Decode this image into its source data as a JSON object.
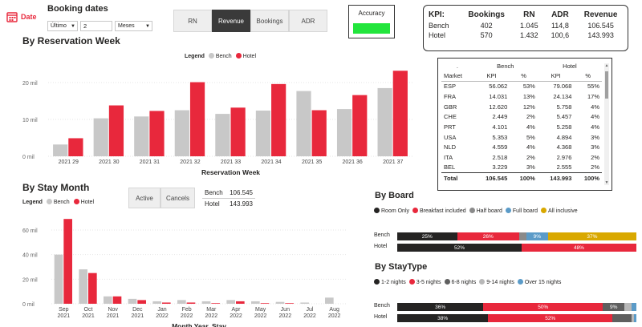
{
  "header": {
    "date_label": "Date",
    "booking_dates_label": "Booking dates",
    "period_mode": "Último",
    "period_count": "2",
    "period_unit": "Meses"
  },
  "metric_tabs": [
    {
      "label": "RN",
      "active": false
    },
    {
      "label": "Revenue",
      "active": true
    },
    {
      "label": "Bookings",
      "active": false
    },
    {
      "label": "ADR",
      "active": false
    }
  ],
  "accuracy": {
    "label": "Accuracy",
    "color": "#22e53c"
  },
  "kpi_summary": {
    "headers": [
      "KPI:",
      "Bookings",
      "RN",
      "ADR",
      "Revenue"
    ],
    "rows": [
      [
        "Bench",
        "402",
        "1.045",
        "114,8",
        "106.545"
      ],
      [
        "Hotel",
        "570",
        "1.432",
        "100,6",
        "143.993"
      ]
    ]
  },
  "colors": {
    "bench": "#c8c8c8",
    "hotel": "#e8283c",
    "accent_red": "#e8283c"
  },
  "reservation_week": {
    "title": "By Reservation Week",
    "legend_title": "Legend",
    "legend_bench": "Bench",
    "legend_hotel": "Hotel",
    "xlabel": "Reservation Week"
  },
  "stay_month": {
    "title": "By Stay Month",
    "legend_title": "Legend",
    "legend_bench": "Bench",
    "legend_hotel": "Hotel",
    "xlabel": "Month Year, Stay",
    "btn_active": "Active",
    "btn_cancels": "Cancels",
    "bench_label": "Bench",
    "bench_value": "106.545",
    "hotel_label": "Hotel",
    "hotel_value": "143.993"
  },
  "chart_data": [
    {
      "type": "bar",
      "title": "By Reservation Week",
      "xlabel": "Reservation Week",
      "categories": [
        "2021 29",
        "2021 30",
        "2021 31",
        "2021 32",
        "2021 33",
        "2021 34",
        "2021 35",
        "2021 36",
        "2021 37"
      ],
      "series": [
        {
          "name": "Bench",
          "values": [
            3.2,
            10.3,
            10.8,
            12.5,
            11.5,
            12.4,
            17.7,
            12.8,
            18.5
          ]
        },
        {
          "name": "Hotel",
          "values": [
            4.9,
            13.8,
            12.3,
            20.1,
            13.2,
            19.6,
            12.5,
            16.6,
            23.2
          ]
        }
      ],
      "yticks": [
        "0 mil",
        "10 mil",
        "20 mil"
      ],
      "ylim": [
        0,
        25
      ]
    },
    {
      "type": "bar",
      "title": "By Stay Month",
      "xlabel": "Month Year, Stay",
      "categories": [
        "Sep 2021",
        "Oct 2021",
        "Nov 2021",
        "Dec 2021",
        "Jan 2022",
        "Feb 2022",
        "Mar 2022",
        "Apr 2022",
        "May 2022",
        "Jun 2022",
        "Jul 2022",
        "Aug 2022"
      ],
      "series": [
        {
          "name": "Bench",
          "values": [
            40,
            28,
            6,
            4,
            2,
            3,
            2,
            3,
            2,
            1.5,
            1,
            5
          ]
        },
        {
          "name": "Hotel",
          "values": [
            69,
            25,
            6,
            3,
            1,
            1,
            0.5,
            2,
            0.5,
            0.5,
            0,
            0
          ]
        }
      ],
      "yticks": [
        "0 mil",
        "20 mil",
        "40 mil",
        "60 mil"
      ],
      "ylim": [
        0,
        75
      ]
    },
    {
      "type": "bar",
      "title": "By Board",
      "stacked_percent": true,
      "categories": [
        "Bench",
        "Hotel"
      ],
      "series": [
        {
          "name": "Room Only",
          "color": "#252423",
          "values": [
            25,
            52
          ]
        },
        {
          "name": "Breakfast included",
          "color": "#e8283c",
          "values": [
            26,
            48
          ]
        },
        {
          "name": "Half board",
          "color": "#8a8a8a",
          "values": [
            3,
            0
          ]
        },
        {
          "name": "Full board",
          "color": "#5b9bc8",
          "values": [
            9,
            0
          ]
        },
        {
          "name": "All inclusive",
          "color": "#d9a800",
          "values": [
            37,
            0
          ]
        }
      ],
      "labels": [
        [
          "25%",
          "26%",
          "",
          "9%",
          "37%"
        ],
        [
          "52%",
          "48%",
          "",
          "",
          ""
        ]
      ]
    },
    {
      "type": "bar",
      "title": "By StayType",
      "stacked_percent": true,
      "categories": [
        "Bench",
        "Hotel"
      ],
      "series": [
        {
          "name": "1-2 nights",
          "color": "#252423",
          "values": [
            36,
            38
          ]
        },
        {
          "name": "3-5 nights",
          "color": "#e8283c",
          "values": [
            50,
            52
          ]
        },
        {
          "name": "6-8 nights",
          "color": "#5f5f5f",
          "values": [
            9,
            8
          ]
        },
        {
          "name": "9-14 nights",
          "color": "#b8b8b8",
          "values": [
            3,
            1
          ]
        },
        {
          "name": "Over 15 nights",
          "color": "#5b9bc8",
          "values": [
            2,
            1
          ]
        }
      ],
      "labels": [
        [
          "36%",
          "50%",
          "9%",
          "",
          ""
        ],
        [
          "38%",
          "52%",
          "",
          "",
          ""
        ]
      ]
    }
  ],
  "market_table": {
    "group_headers": [
      ".",
      "Bench",
      "Hotel"
    ],
    "sub_headers": [
      "Market",
      "KPI",
      "%",
      "KPI",
      "%"
    ],
    "rows": [
      [
        "ESP",
        "56.062",
        "53%",
        "79.068",
        "55%"
      ],
      [
        "FRA",
        "14.031",
        "13%",
        "24.134",
        "17%"
      ],
      [
        "GBR",
        "12.620",
        "12%",
        "5.758",
        "4%"
      ],
      [
        "CHE",
        "2.449",
        "2%",
        "5.457",
        "4%"
      ],
      [
        "PRT",
        "4.101",
        "4%",
        "5.258",
        "4%"
      ],
      [
        "USA",
        "5.353",
        "5%",
        "4.894",
        "3%"
      ],
      [
        "NLD",
        "4.559",
        "4%",
        "4.368",
        "3%"
      ],
      [
        "ITA",
        "2.518",
        "2%",
        "2.976",
        "2%"
      ],
      [
        "BEL",
        "3.229",
        "3%",
        "2.555",
        "2%"
      ]
    ],
    "total": [
      "Total",
      "106.545",
      "100%",
      "143.993",
      "100%"
    ]
  },
  "board": {
    "title": "By Board",
    "row_bench": "Bench",
    "row_hotel": "Hotel"
  },
  "staytype": {
    "title": "By StayType",
    "row_bench": "Bench",
    "row_hotel": "Hotel"
  }
}
